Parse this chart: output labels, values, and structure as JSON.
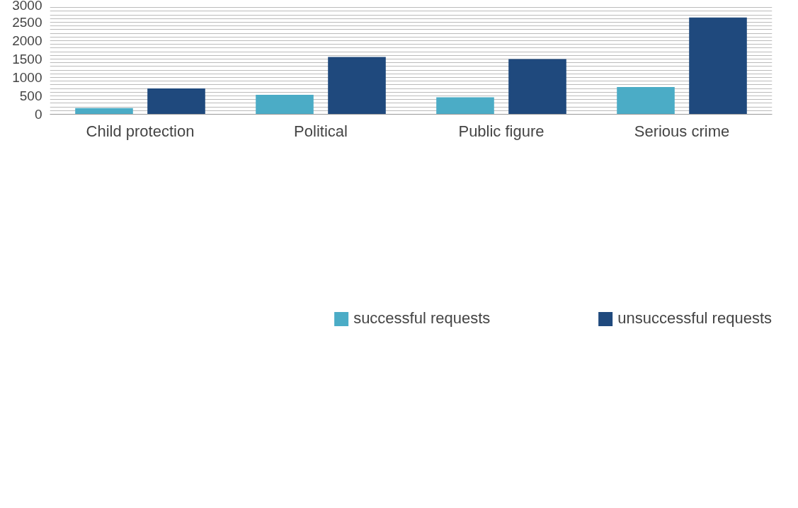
{
  "chart_data": {
    "type": "bar",
    "categories": [
      "Child protection",
      "Political",
      "Public figure",
      "Serious crime"
    ],
    "series": [
      {
        "name": "successful requests",
        "color": "#4bacc6",
        "values": [
          170,
          530,
          460,
          740
        ]
      },
      {
        "name": "unsuccessful requests",
        "color": "#1f497d",
        "values": [
          700,
          1560,
          1500,
          2630
        ]
      }
    ],
    "ylim": [
      0,
      3000
    ],
    "yticks": [
      0,
      {
        "value": 100,
        "label": null
      },
      {
        "value": 200,
        "label": null
      },
      {
        "value": 300,
        "label": null
      },
      {
        "value": 400,
        "label": null
      },
      500,
      {
        "value": 600,
        "label": null
      },
      {
        "value": 700,
        "label": null
      },
      {
        "value": 800,
        "label": null
      },
      {
        "value": 900,
        "label": null
      },
      1000,
      {
        "value": 1100,
        "label": null
      },
      {
        "value": 1200,
        "label": null
      },
      {
        "value": 1300,
        "label": null
      },
      {
        "value": 1400,
        "label": null
      },
      1500,
      {
        "value": 1600,
        "label": null
      },
      {
        "value": 1700,
        "label": null
      },
      {
        "value": 1800,
        "label": null
      },
      {
        "value": 1900,
        "label": null
      },
      2000,
      {
        "value": 2100,
        "label": null
      },
      {
        "value": 2200,
        "label": null
      },
      {
        "value": 2300,
        "label": null
      },
      {
        "value": 2400,
        "label": null
      },
      2500,
      {
        "value": 2600,
        "label": null
      },
      {
        "value": 2700,
        "label": null
      },
      {
        "value": 2800,
        "label": null
      },
      {
        "value": 2900,
        "label": null
      },
      3000
    ],
    "grid": "y",
    "legend": "bottom"
  }
}
